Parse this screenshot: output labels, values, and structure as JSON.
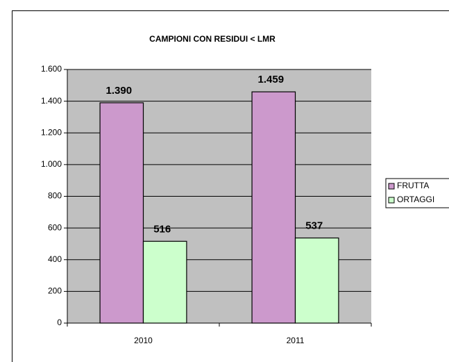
{
  "chart_data": {
    "type": "bar",
    "title": "CAMPIONI CON RESIDUI < LMR",
    "categories": [
      "2010",
      "2011"
    ],
    "series": [
      {
        "name": "FRUTTA",
        "color": "#cc99cc",
        "values": [
          1390,
          1459
        ],
        "value_labels": [
          "1.390",
          "1.459"
        ]
      },
      {
        "name": "ORTAGGI",
        "color": "#ccffcc",
        "values": [
          516,
          537
        ],
        "value_labels": [
          "516",
          "537"
        ]
      }
    ],
    "ylim": [
      0,
      1600
    ],
    "yticks": [
      0,
      200,
      400,
      600,
      800,
      {
        "value": 1000,
        "label": "1.000"
      },
      {
        "value": 1200,
        "label": "1.200"
      },
      {
        "value": 1400,
        "label": "1.400"
      },
      {
        "value": 1600,
        "label": "1.600"
      }
    ],
    "grid": true,
    "plot_background": "#c0c0c0",
    "legend": "right"
  }
}
